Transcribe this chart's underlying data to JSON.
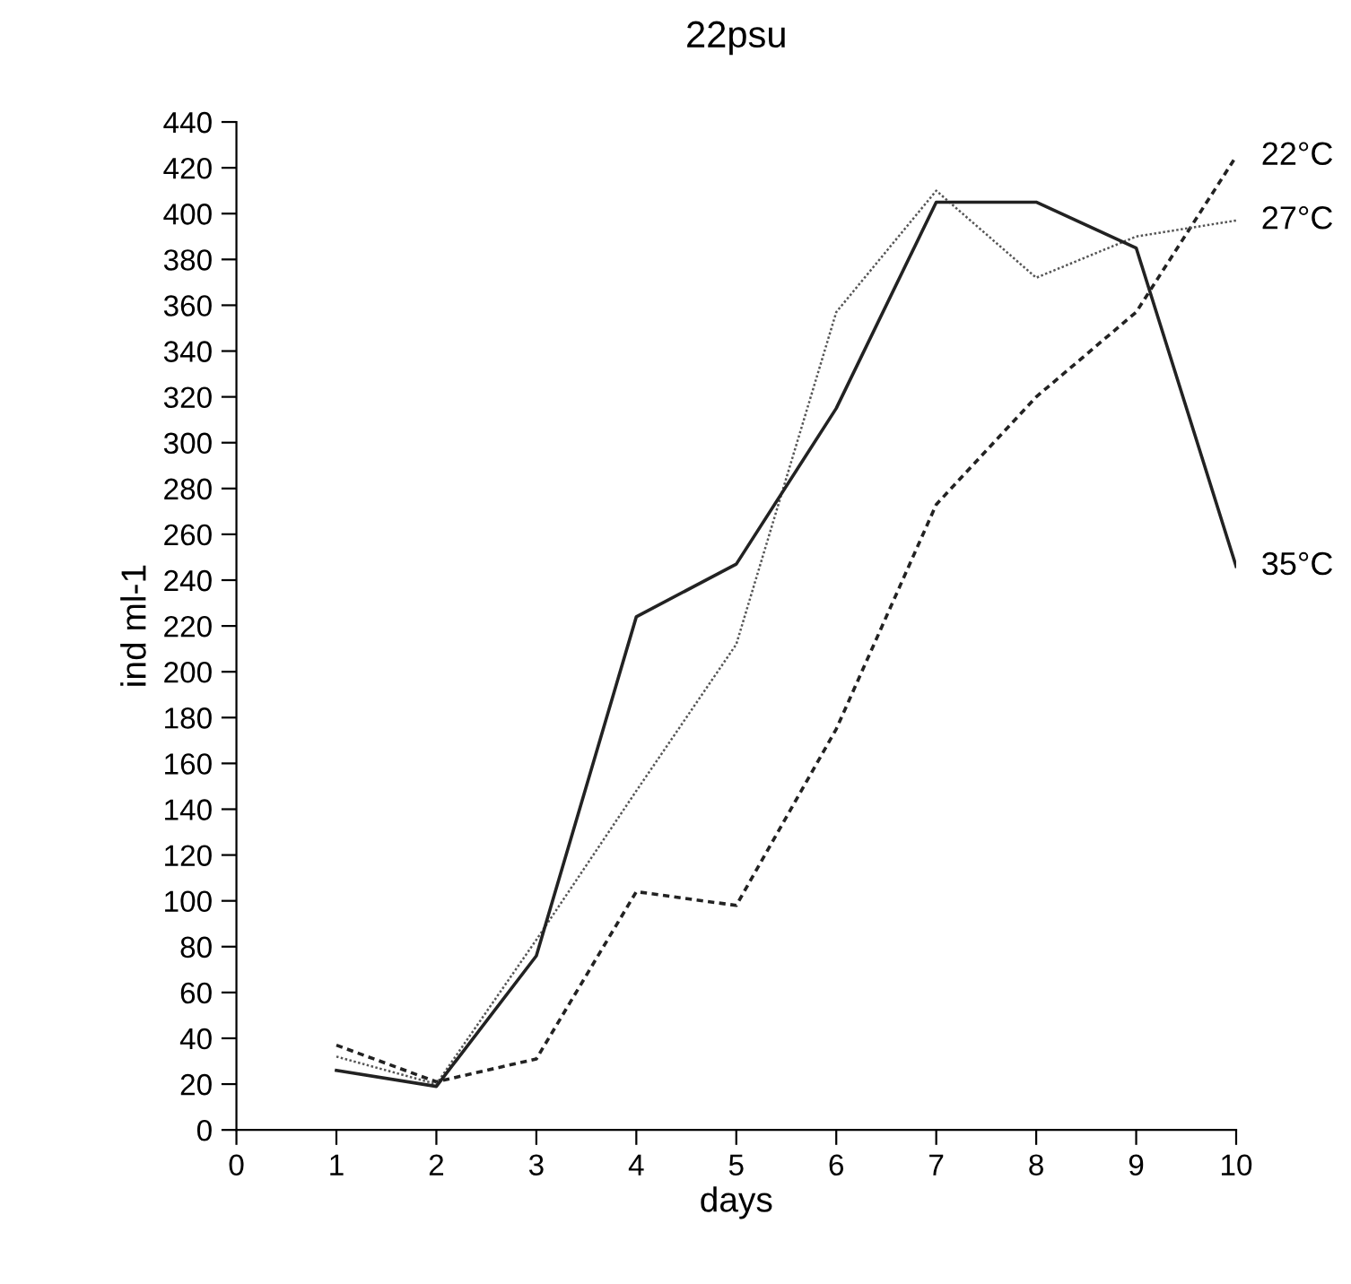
{
  "chart_data": {
    "type": "line",
    "title": "22psu",
    "xlabel": "days",
    "ylabel": "ind ml-1",
    "x": [
      1,
      2,
      3,
      4,
      5,
      6,
      7,
      8,
      9,
      10
    ],
    "series": [
      {
        "name": "22°C",
        "color": "#222222",
        "line_style": "dashed",
        "values": [
          37,
          21,
          31,
          104,
          98,
          175,
          273,
          320,
          357,
          425
        ]
      },
      {
        "name": "27°C",
        "color": "#555555",
        "line_style": "dotted",
        "values": [
          32,
          20,
          83,
          148,
          212,
          357,
          410,
          372,
          390,
          397
        ]
      },
      {
        "name": "35°C",
        "color": "#222222",
        "line_style": "solid",
        "values": [
          26,
          19,
          76,
          224,
          247,
          315,
          405,
          405,
          385,
          246
        ]
      }
    ],
    "xlim": [
      0,
      10
    ],
    "xticks": [
      0,
      1,
      2,
      3,
      4,
      5,
      6,
      7,
      8,
      9,
      10
    ],
    "ylim": [
      0,
      440
    ],
    "yticks": [
      0,
      20,
      40,
      60,
      80,
      100,
      120,
      140,
      160,
      180,
      200,
      220,
      240,
      260,
      280,
      300,
      320,
      340,
      360,
      380,
      400,
      420,
      440
    ],
    "grid": false,
    "legend": false,
    "marker": "none"
  }
}
